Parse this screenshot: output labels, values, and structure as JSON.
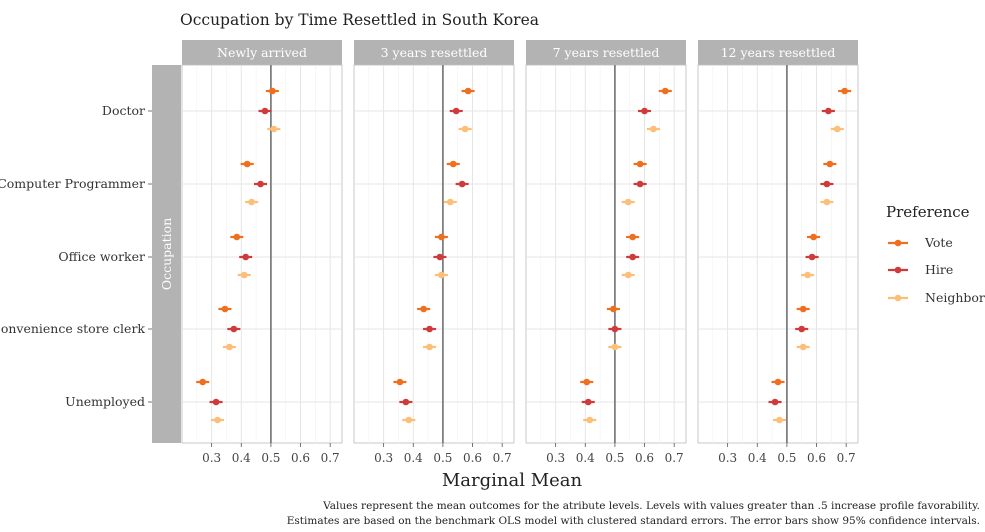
{
  "chart_data": {
    "type": "scatter",
    "title": "Occupation by Time Resettled in South Korea",
    "xlabel": "Marginal Mean",
    "ylabel": "Occupation",
    "xlim": [
      0.2,
      0.74
    ],
    "xticks": [
      0.3,
      0.4,
      0.5,
      0.6,
      0.7
    ],
    "xtick_labels": [
      "0.3",
      "0.4",
      "0.5",
      "0.6",
      "0.7"
    ],
    "reference_line": 0.5,
    "categories": [
      "Doctor",
      "Computer Programmer",
      "Office worker",
      "Convenience store clerk",
      "Unemployed"
    ],
    "legend": {
      "title": "Preference",
      "position": "right"
    },
    "series": [
      {
        "name": "Vote",
        "color": "#ef6f1e"
      },
      {
        "name": "Hire",
        "color": "#cf3b3b"
      },
      {
        "name": "Neighbor",
        "color": "#fbbf78"
      }
    ],
    "grid": true,
    "panels": [
      {
        "label": "Newly arrived",
        "values": {
          "Vote": [
            0.505,
            0.42,
            0.385,
            0.345,
            0.27
          ],
          "Hire": [
            0.48,
            0.465,
            0.415,
            0.375,
            0.315
          ],
          "Neighbor": [
            0.51,
            0.435,
            0.41,
            0.36,
            0.32
          ]
        }
      },
      {
        "label": "3 years resettled",
        "values": {
          "Vote": [
            0.585,
            0.535,
            0.495,
            0.435,
            0.355
          ],
          "Hire": [
            0.545,
            0.565,
            0.49,
            0.455,
            0.375
          ],
          "Neighbor": [
            0.575,
            0.525,
            0.495,
            0.455,
            0.385
          ]
        }
      },
      {
        "label": "7 years resettled",
        "values": {
          "Vote": [
            0.67,
            0.585,
            0.56,
            0.495,
            0.405
          ],
          "Hire": [
            0.6,
            0.585,
            0.56,
            0.5,
            0.41
          ],
          "Neighbor": [
            0.63,
            0.545,
            0.545,
            0.5,
            0.415
          ]
        }
      },
      {
        "label": "12 years resettled",
        "values": {
          "Vote": [
            0.695,
            0.645,
            0.59,
            0.555,
            0.47
          ],
          "Hire": [
            0.64,
            0.635,
            0.585,
            0.55,
            0.46
          ],
          "Neighbor": [
            0.67,
            0.635,
            0.57,
            0.555,
            0.475
          ]
        }
      }
    ],
    "ci_halfwidth": 0.022
  },
  "caption": [
    "Values represent the mean outcomes for the atribute levels. Levels with values greater than .5 increase profile favorability.",
    "Estimates are based on the benchmark OLS model with clustered standard errors. The error bars show 95% confidence intervals."
  ]
}
